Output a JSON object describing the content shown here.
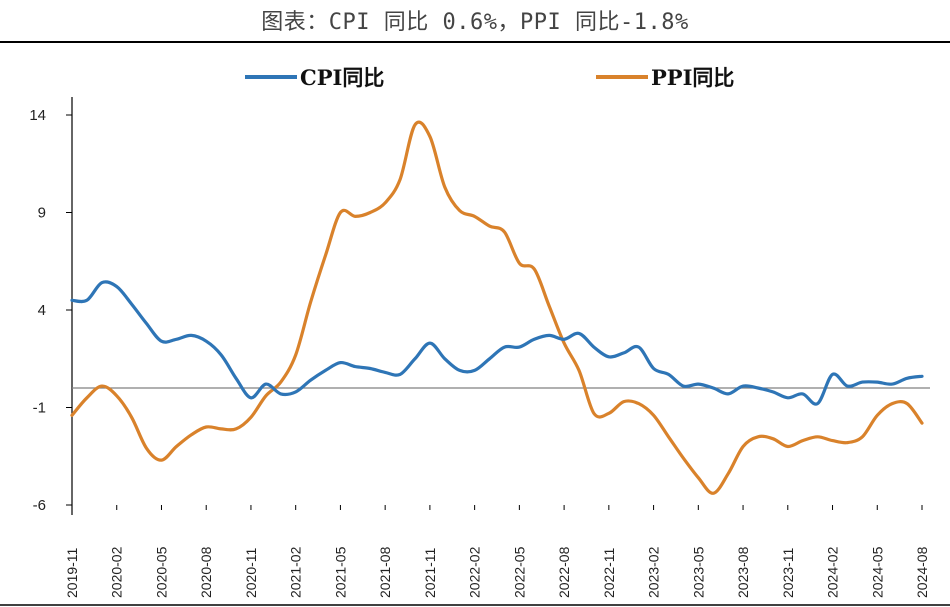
{
  "title": "图表：CPI 同比 0.6%，PPI 同比-1.8%",
  "colors": {
    "cpi": "#2E75B6",
    "ppi": "#D9822B",
    "axis": "#000000",
    "zero": "#808080"
  },
  "chart_data": {
    "type": "line",
    "title": "",
    "ylim": [
      -6,
      14
    ],
    "yticks": [
      14,
      9,
      4,
      -1,
      -6
    ],
    "xticks": [
      "2019-11",
      "2020-02",
      "2020-05",
      "2020-08",
      "2020-11",
      "2021-02",
      "2021-05",
      "2021-08",
      "2021-11",
      "2022-02",
      "2022-05",
      "2022-08",
      "2022-11",
      "2023-02",
      "2023-05",
      "2023-08",
      "2023-11",
      "2024-02",
      "2024-05",
      "2024-08"
    ],
    "x": [
      "2019-11",
      "2019-12",
      "2020-01",
      "2020-02",
      "2020-03",
      "2020-04",
      "2020-05",
      "2020-06",
      "2020-07",
      "2020-08",
      "2020-09",
      "2020-10",
      "2020-11",
      "2020-12",
      "2021-01",
      "2021-02",
      "2021-03",
      "2021-04",
      "2021-05",
      "2021-06",
      "2021-07",
      "2021-08",
      "2021-09",
      "2021-10",
      "2021-11",
      "2021-12",
      "2022-01",
      "2022-02",
      "2022-03",
      "2022-04",
      "2022-05",
      "2022-06",
      "2022-07",
      "2022-08",
      "2022-09",
      "2022-10",
      "2022-11",
      "2022-12",
      "2023-01",
      "2023-02",
      "2023-03",
      "2023-04",
      "2023-05",
      "2023-06",
      "2023-07",
      "2023-08",
      "2023-09",
      "2023-10",
      "2023-11",
      "2023-12",
      "2024-01",
      "2024-02",
      "2024-03",
      "2024-04",
      "2024-05",
      "2024-06",
      "2024-07",
      "2024-08"
    ],
    "legend": "top",
    "series": [
      {
        "name": "CPI同比",
        "values": [
          4.5,
          4.5,
          5.4,
          5.2,
          4.3,
          3.3,
          2.4,
          2.5,
          2.7,
          2.4,
          1.7,
          0.5,
          -0.5,
          0.2,
          -0.3,
          -0.2,
          0.4,
          0.9,
          1.3,
          1.1,
          1.0,
          0.8,
          0.7,
          1.5,
          2.3,
          1.5,
          0.9,
          0.9,
          1.5,
          2.1,
          2.1,
          2.5,
          2.7,
          2.5,
          2.8,
          2.1,
          1.6,
          1.8,
          2.1,
          1.0,
          0.7,
          0.1,
          0.2,
          0.0,
          -0.3,
          0.1,
          0.0,
          -0.2,
          -0.5,
          -0.3,
          -0.8,
          0.7,
          0.1,
          0.3,
          0.3,
          0.2,
          0.5,
          0.6
        ]
      },
      {
        "name": "PPI同比",
        "values": [
          -1.4,
          -0.5,
          0.1,
          -0.4,
          -1.5,
          -3.1,
          -3.7,
          -3.0,
          -2.4,
          -2.0,
          -2.1,
          -2.1,
          -1.5,
          -0.4,
          0.3,
          1.7,
          4.4,
          6.8,
          9.0,
          8.8,
          9.0,
          9.5,
          10.7,
          13.5,
          12.9,
          10.3,
          9.1,
          8.8,
          8.3,
          8.0,
          6.4,
          6.1,
          4.2,
          2.3,
          0.9,
          -1.3,
          -1.3,
          -0.7,
          -0.8,
          -1.4,
          -2.5,
          -3.6,
          -4.6,
          -5.4,
          -4.4,
          -3.0,
          -2.5,
          -2.6,
          -3.0,
          -2.7,
          -2.5,
          -2.7,
          -2.8,
          -2.5,
          -1.4,
          -0.8,
          -0.8,
          -1.8
        ]
      }
    ]
  }
}
